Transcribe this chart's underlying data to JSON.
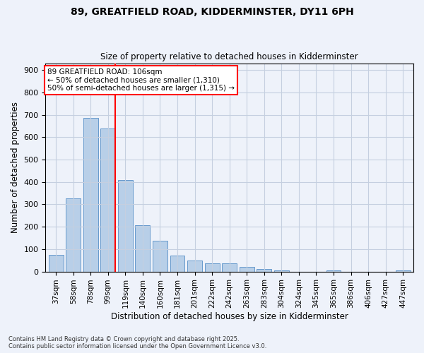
{
  "title1": "89, GREATFIELD ROAD, KIDDERMINSTER, DY11 6PH",
  "title2": "Size of property relative to detached houses in Kidderminster",
  "xlabel": "Distribution of detached houses by size in Kidderminster",
  "ylabel": "Number of detached properties",
  "categories": [
    "37sqm",
    "58sqm",
    "78sqm",
    "99sqm",
    "119sqm",
    "140sqm",
    "160sqm",
    "181sqm",
    "201sqm",
    "222sqm",
    "242sqm",
    "263sqm",
    "283sqm",
    "304sqm",
    "324sqm",
    "345sqm",
    "365sqm",
    "386sqm",
    "406sqm",
    "427sqm",
    "447sqm"
  ],
  "values": [
    75,
    325,
    685,
    640,
    410,
    207,
    137,
    70,
    48,
    35,
    35,
    22,
    10,
    5,
    0,
    0,
    5,
    0,
    0,
    0,
    5
  ],
  "bar_color": "#b8cfe8",
  "bar_edge_color": "#6699cc",
  "vline_x_index": 3.425,
  "vline_color": "red",
  "annotation_text": "89 GREATFIELD ROAD: 106sqm\n← 50% of detached houses are smaller (1,310)\n50% of semi-detached houses are larger (1,315) →",
  "annotation_box_color": "white",
  "annotation_box_edge_color": "red",
  "ylim": [
    0,
    930
  ],
  "yticks": [
    0,
    100,
    200,
    300,
    400,
    500,
    600,
    700,
    800,
    900
  ],
  "footnote": "Contains HM Land Registry data © Crown copyright and database right 2025.\nContains public sector information licensed under the Open Government Licence v3.0.",
  "bg_color": "#eef2fa",
  "grid_color": "#c5cfe0",
  "fig_width": 6.0,
  "fig_height": 5.0,
  "dpi": 100
}
